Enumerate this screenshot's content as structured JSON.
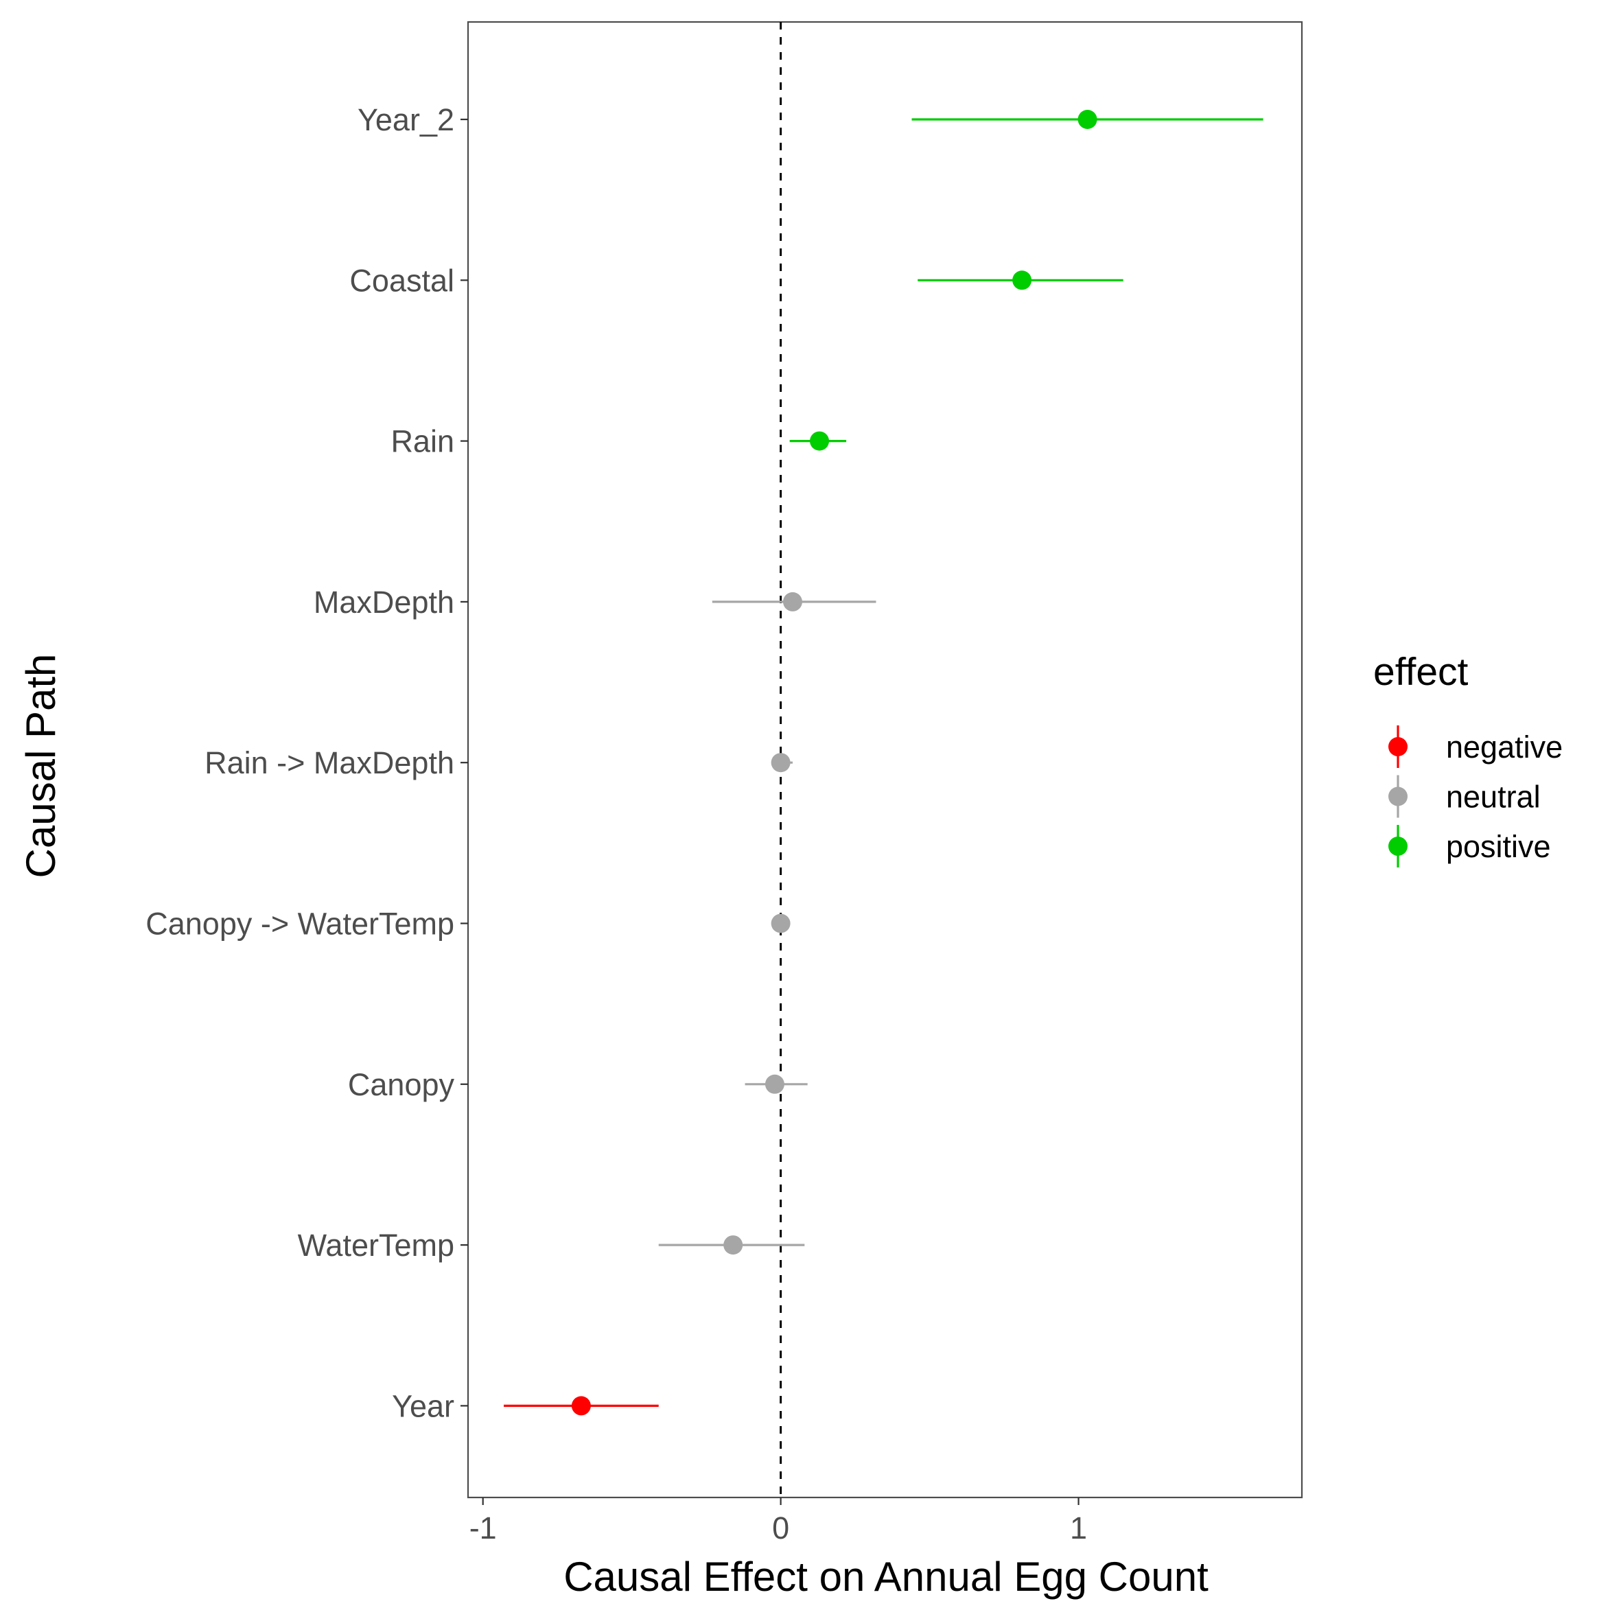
{
  "chart_data": {
    "type": "forest",
    "xlabel": "Causal Effect on Annual Egg Count",
    "ylabel": "Causal Path",
    "xlim": [
      -1.05,
      1.75
    ],
    "xticks": [
      {
        "value": -1,
        "label": "-1"
      },
      {
        "value": 0,
        "label": "0"
      },
      {
        "value": 1,
        "label": "1"
      }
    ],
    "reference_line": {
      "x": 0,
      "style": "dashed"
    },
    "grid": false,
    "legend": {
      "title": "effect",
      "placement": "right",
      "entries": [
        {
          "key": "negative",
          "label": "negative",
          "color": "#FF0000"
        },
        {
          "key": "neutral",
          "label": "neutral",
          "color": "#A6A6A6"
        },
        {
          "key": "positive",
          "label": "positive",
          "color": "#00CD00"
        }
      ]
    },
    "categories": [
      "Year_2",
      "Coastal",
      "Rain",
      "MaxDepth",
      "Rain -> MaxDepth",
      "Canopy -> WaterTemp",
      "Canopy",
      "WaterTemp",
      "Year"
    ],
    "points": [
      {
        "category": "Year_2",
        "estimate": 1.03,
        "lower": 0.44,
        "upper": 1.62,
        "effect": "positive"
      },
      {
        "category": "Coastal",
        "estimate": 0.81,
        "lower": 0.46,
        "upper": 1.15,
        "effect": "positive"
      },
      {
        "category": "Rain",
        "estimate": 0.13,
        "lower": 0.03,
        "upper": 0.22,
        "effect": "positive"
      },
      {
        "category": "MaxDepth",
        "estimate": 0.04,
        "lower": -0.23,
        "upper": 0.32,
        "effect": "neutral"
      },
      {
        "category": "Rain -> MaxDepth",
        "estimate": 0.0,
        "lower": -0.03,
        "upper": 0.04,
        "effect": "neutral"
      },
      {
        "category": "Canopy -> WaterTemp",
        "estimate": 0.0,
        "lower": -0.01,
        "upper": 0.01,
        "effect": "neutral"
      },
      {
        "category": "Canopy",
        "estimate": -0.02,
        "lower": -0.12,
        "upper": 0.09,
        "effect": "neutral"
      },
      {
        "category": "WaterTemp",
        "estimate": -0.16,
        "lower": -0.41,
        "upper": 0.08,
        "effect": "neutral"
      },
      {
        "category": "Year",
        "estimate": -0.67,
        "lower": -0.93,
        "upper": -0.41,
        "effect": "negative"
      }
    ]
  }
}
